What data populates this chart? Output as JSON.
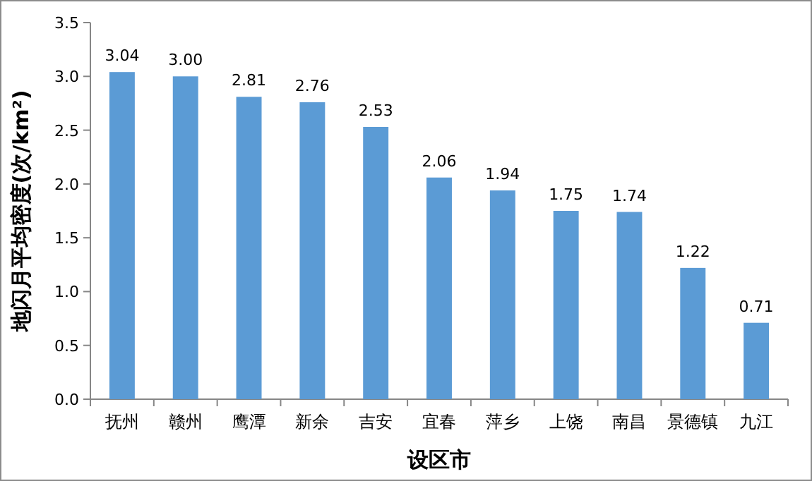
{
  "chart_data": {
    "type": "bar",
    "xlabel": "设区市",
    "ylabel": "地闪月平均密度(次/km²)",
    "categories": [
      "抚州",
      "赣州",
      "鹰潭",
      "新余",
      "吉安",
      "宜春",
      "萍乡",
      "上饶",
      "南昌",
      "景德镇",
      "九江"
    ],
    "values": [
      3.04,
      3.0,
      2.81,
      2.76,
      2.53,
      2.06,
      1.94,
      1.75,
      1.74,
      1.22,
      0.71
    ],
    "value_labels": [
      "3.04",
      "3.00",
      "2.81",
      "2.76",
      "2.53",
      "2.06",
      "1.94",
      "1.75",
      "1.74",
      "1.22",
      "0.71"
    ],
    "color": "#5b9bd5",
    "ylim": [
      0,
      3.5
    ],
    "yticks": [
      {
        "value": 0,
        "label": "0.0"
      },
      {
        "value": 0.5,
        "label": "0.5"
      },
      {
        "value": 1,
        "label": "1.0"
      },
      {
        "value": 1.5,
        "label": "1.5"
      },
      {
        "value": 2,
        "label": "2.0"
      },
      {
        "value": 2.5,
        "label": "2.5"
      },
      {
        "value": 3,
        "label": "3.0"
      },
      {
        "value": 3.5,
        "label": "3.5"
      }
    ]
  }
}
